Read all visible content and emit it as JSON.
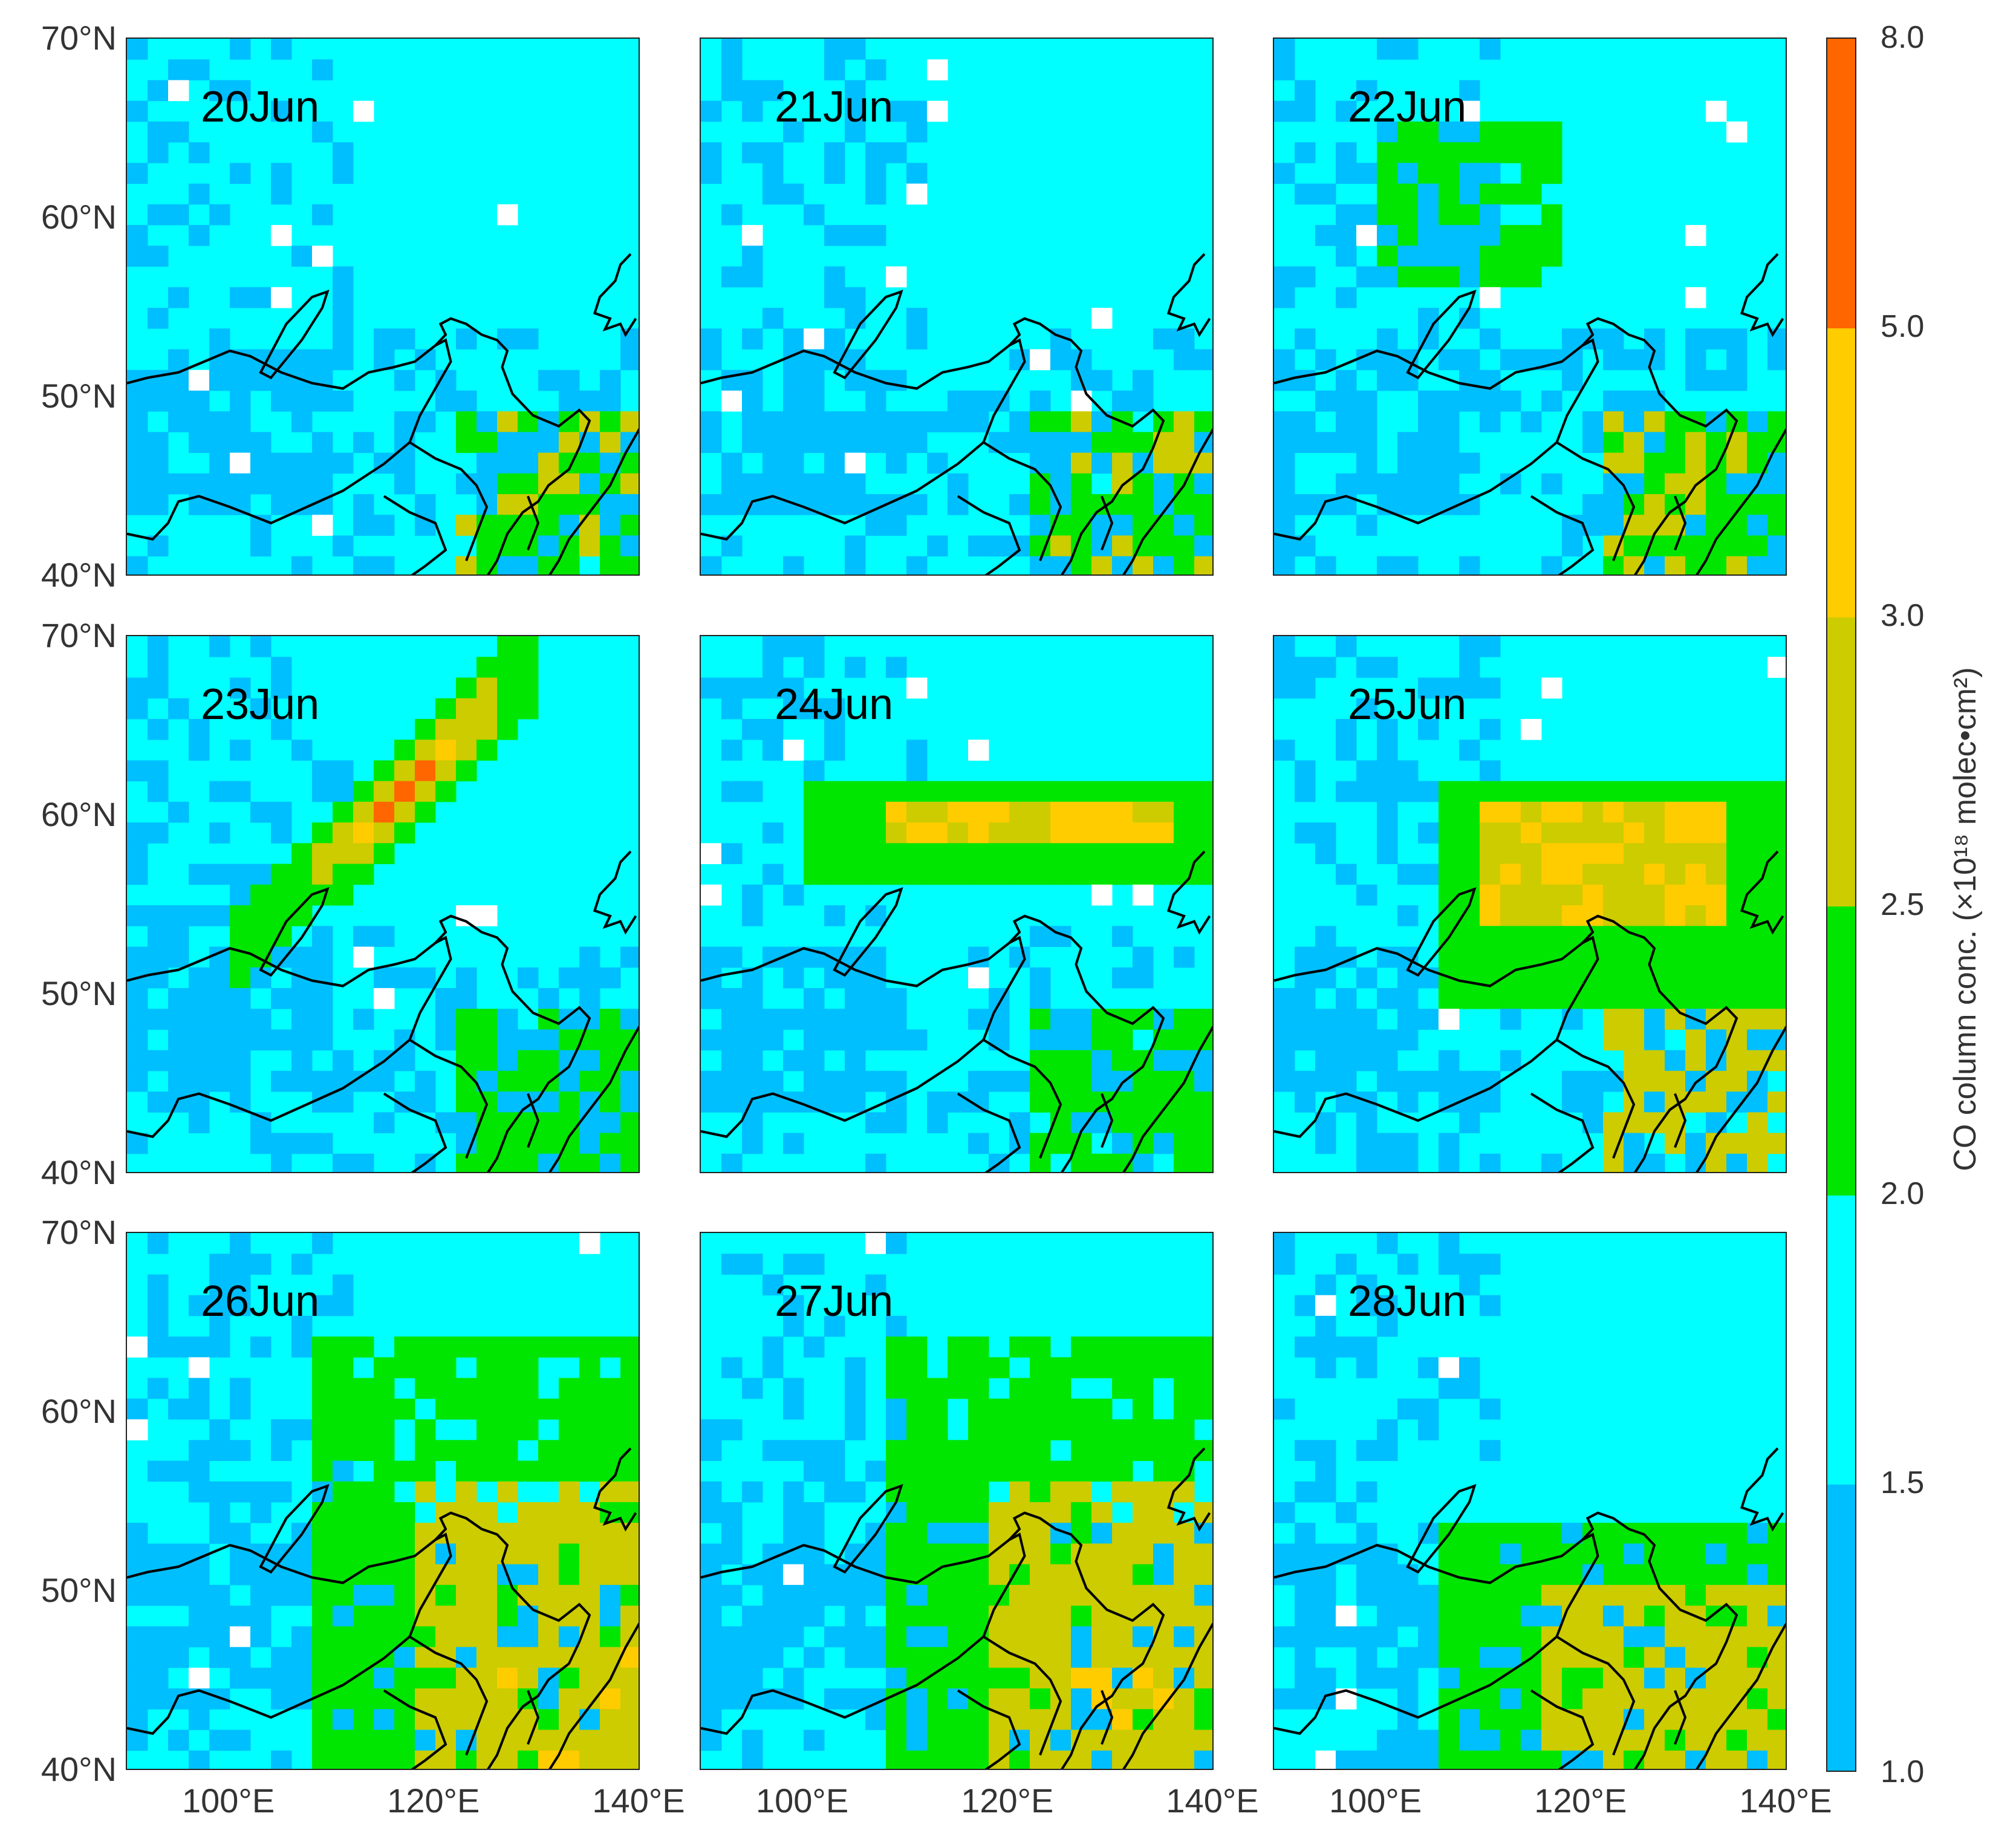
{
  "panels": [
    {
      "date": "20Jun",
      "plume": "none"
    },
    {
      "date": "21Jun",
      "plume": "none"
    },
    {
      "date": "22Jun",
      "plume": "north-green"
    },
    {
      "date": "23Jun",
      "plume": "diagonal-band"
    },
    {
      "date": "24Jun",
      "plume": "horizontal-band"
    },
    {
      "date": "25Jun",
      "plume": "central-blob"
    },
    {
      "date": "26Jun",
      "plume": "southeast-heavy"
    },
    {
      "date": "27Jun",
      "plume": "southeast-heavy"
    },
    {
      "date": "28Jun",
      "plume": "southeast-medium"
    }
  ],
  "y_axis": {
    "ticks": [
      "70°N",
      "60°N",
      "50°N",
      "40°N"
    ],
    "range": [
      40,
      70
    ]
  },
  "x_axis": {
    "ticks": [
      "100°E",
      "120°E",
      "140°E"
    ],
    "range": [
      90,
      140
    ]
  },
  "colorbar": {
    "title": "CO column conc. (×10¹⁸ molec•cm²)",
    "ticks": [
      "1.0",
      "1.5",
      "2.0",
      "2.5",
      "3.0",
      "5.0",
      "8.0"
    ],
    "segments": [
      {
        "range": "1.0-1.5",
        "color": "#00bfff"
      },
      {
        "range": "1.5-2.0",
        "color": "#00ffff"
      },
      {
        "range": "2.0-2.5",
        "color": "#00e600"
      },
      {
        "range": "2.5-3.0",
        "color": "#cccc00"
      },
      {
        "range": "3.0-5.0",
        "color": "#ffcc00"
      },
      {
        "range": "5.0-8.0",
        "color": "#ff6600"
      }
    ]
  }
}
